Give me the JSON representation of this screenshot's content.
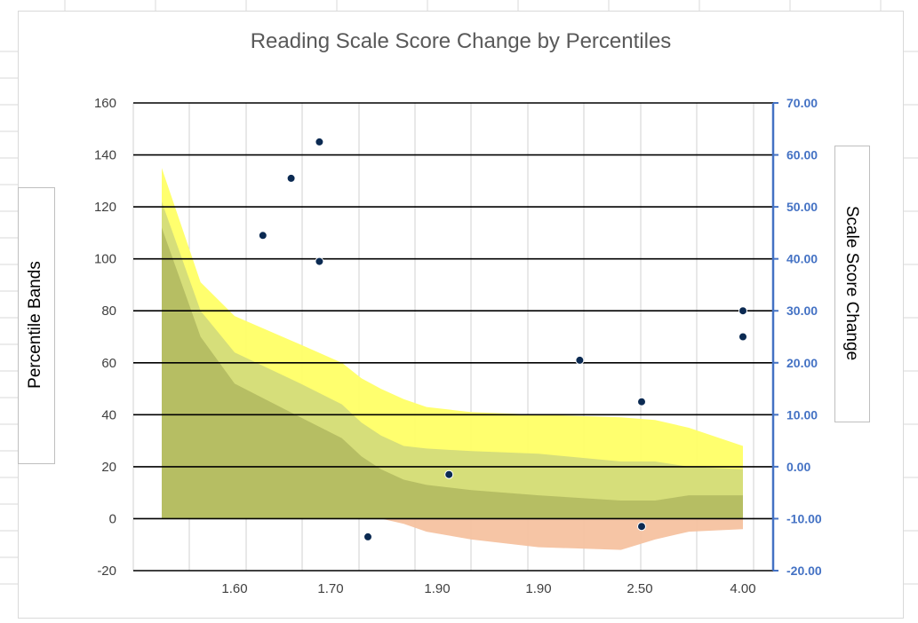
{
  "chart_data": {
    "type": "area",
    "title": "Reading Scale Score Change by Percentiles",
    "y_left_label": "Percentile Bands",
    "y_right_label": "Scale Score Change",
    "x_tick_labels": [
      "1.60",
      "1.70",
      "1.90",
      "1.90",
      "2.50",
      "4.00"
    ],
    "y_left_ticks": [
      "160",
      "140",
      "120",
      "100",
      "80",
      "60",
      "40",
      "20",
      "0",
      "-20"
    ],
    "y_right_ticks": [
      "70.00",
      "60.00",
      "50.00",
      "40.00",
      "30.00",
      "20.00",
      "10.00",
      "0.00",
      "-10.00",
      "-20.00"
    ],
    "ylim_left": [
      -20,
      160
    ],
    "ylim_right": [
      -20,
      70
    ],
    "grid": true,
    "band_x": [
      1.45,
      1.53,
      1.6,
      1.67,
      1.74,
      1.8,
      1.86,
      1.93,
      2.0,
      2.1,
      2.25,
      2.45,
      2.7,
      3.2,
      4.0
    ],
    "bands": [
      {
        "name": "",
        "color": "#ffff66",
        "values": [
          135,
          91,
          78,
          67,
          60,
          54,
          50,
          46,
          43,
          41,
          40,
          39,
          38,
          35,
          28
        ]
      },
      {
        "name": "",
        "color": "#d4dc7a",
        "values": [
          122,
          80,
          64,
          52,
          44,
          37,
          32,
          28,
          27,
          26,
          25,
          22,
          22,
          20,
          19
        ]
      },
      {
        "name": "",
        "color": "#b4bc62",
        "values": [
          112,
          70,
          52,
          39,
          31,
          24,
          19,
          15,
          13,
          11,
          9,
          7,
          7,
          9,
          9
        ]
      },
      {
        "name": "",
        "color": "#f5c2a0",
        "values": [
          0,
          0,
          0,
          0,
          0,
          0,
          0,
          -2,
          -5,
          -8,
          -11,
          -12,
          -8,
          -5,
          -4
        ]
      }
    ],
    "scatter": {
      "name": "",
      "color": "#0b2a52",
      "points": [
        {
          "x": 1.63,
          "y": 44.5
        },
        {
          "x": 1.66,
          "y": 55.5
        },
        {
          "x": 1.69,
          "y": 62.5
        },
        {
          "x": 1.69,
          "y": 39.5
        },
        {
          "x": 1.82,
          "y": -13.5
        },
        {
          "x": 2.05,
          "y": -1.5
        },
        {
          "x": 2.35,
          "y": 20.5
        },
        {
          "x": 2.5,
          "y": 12.5
        },
        {
          "x": 2.5,
          "y": -11.5
        },
        {
          "x": 4.0,
          "y": 30.0
        },
        {
          "x": 4.0,
          "y": 25.0
        }
      ]
    }
  }
}
